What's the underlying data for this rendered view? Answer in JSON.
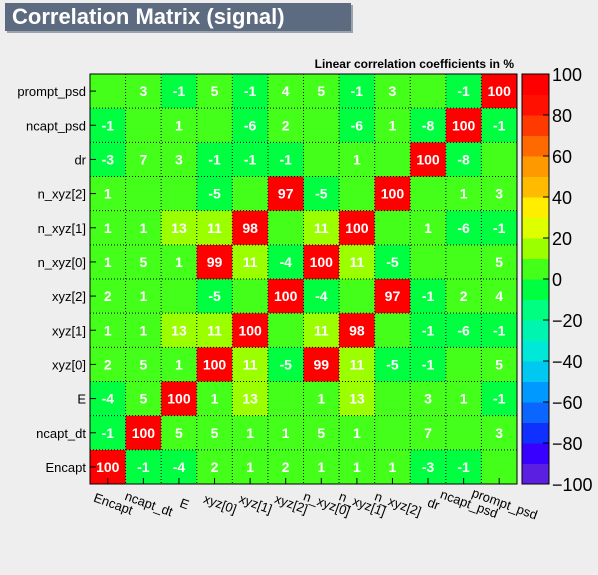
{
  "title": "Correlation Matrix (signal)",
  "chart_data": {
    "type": "heatmap",
    "title": "Correlation Matrix (signal)",
    "subtitle": "Linear correlation coefficients in %",
    "variables": [
      "Encapt",
      "ncapt_dt",
      "E",
      "xyz[0]",
      "xyz[1]",
      "xyz[2]",
      "n_xyz[0]",
      "n_xyz[1]",
      "n_xyz[2]",
      "dr",
      "ncapt_psd",
      "prompt_psd"
    ],
    "matrix": [
      [
        100,
        -1,
        -4,
        2,
        1,
        2,
        1,
        1,
        1,
        -3,
        -1,
        0
      ],
      [
        -1,
        100,
        5,
        5,
        1,
        1,
        5,
        1,
        0,
        7,
        0,
        3
      ],
      [
        -4,
        5,
        100,
        1,
        13,
        0,
        1,
        13,
        0,
        3,
        1,
        -1
      ],
      [
        2,
        5,
        1,
        100,
        11,
        -5,
        99,
        11,
        -5,
        -1,
        0,
        5
      ],
      [
        1,
        1,
        13,
        11,
        100,
        0,
        11,
        98,
        0,
        -1,
        -6,
        -1
      ],
      [
        2,
        1,
        0,
        -5,
        0,
        100,
        -4,
        0,
        97,
        -1,
        2,
        4
      ],
      [
        1,
        5,
        1,
        99,
        11,
        -4,
        100,
        11,
        -5,
        0,
        0,
        5
      ],
      [
        1,
        1,
        13,
        11,
        98,
        0,
        11,
        100,
        0,
        1,
        -6,
        -1
      ],
      [
        1,
        0,
        0,
        -5,
        0,
        97,
        -5,
        0,
        100,
        0,
        1,
        3
      ],
      [
        -3,
        7,
        3,
        -1,
        -1,
        -1,
        0,
        1,
        0,
        100,
        -8,
        0
      ],
      [
        -1,
        0,
        1,
        0,
        -6,
        2,
        0,
        -6,
        1,
        -8,
        100,
        -1
      ],
      [
        0,
        3,
        -1,
        5,
        -1,
        4,
        5,
        -1,
        3,
        0,
        -1,
        100
      ]
    ],
    "zlim": [
      -100,
      100
    ],
    "colorbar_ticks": [
      100,
      80,
      60,
      40,
      20,
      0,
      -20,
      -40,
      -60,
      -80,
      -100
    ],
    "colorbar_tick_labels": [
      "100",
      "80",
      "60",
      "40",
      "20",
      "0",
      "−20",
      "−40",
      "−60",
      "−80",
      "−100"
    ],
    "colorbar_colors": [
      "#5a1fe0",
      "#3800ff",
      "#1030ff",
      "#0a66ff",
      "#0099ff",
      "#00c8f0",
      "#00e8d8",
      "#00f5b0",
      "#00ff80",
      "#00ff40",
      "#44ff1a",
      "#9cff00",
      "#ddff00",
      "#ffee00",
      "#ffbb00",
      "#ff9900",
      "#ff6a00",
      "#ff3a00",
      "#ff1000",
      "#ff0000"
    ],
    "grid": true
  }
}
